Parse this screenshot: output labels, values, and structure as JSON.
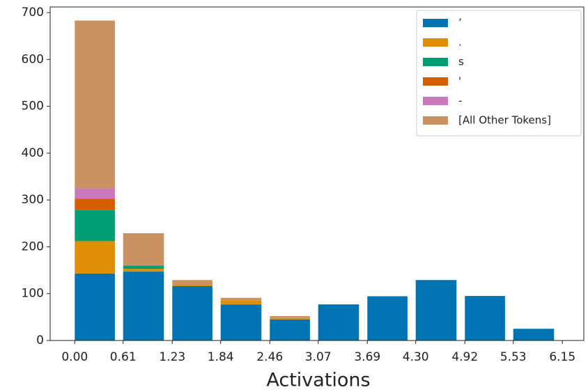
{
  "chart_data": {
    "type": "stacked-histogram",
    "xlabel": "Activations",
    "bins": [
      0,
      0.61,
      1.23,
      1.84,
      2.46,
      3.07,
      3.69,
      4.3,
      4.92,
      5.53,
      6.15
    ],
    "series": [
      {
        "name": "’",
        "color": "#0173b2",
        "values": [
          143,
          147,
          116,
          77,
          45,
          77,
          94,
          129,
          95,
          25
        ]
      },
      {
        "name": ".",
        "color": "#de8f05",
        "values": [
          69,
          6,
          3,
          8,
          3,
          0,
          0,
          0,
          0,
          0
        ]
      },
      {
        "name": "s",
        "color": "#029e73",
        "values": [
          67,
          7,
          0,
          0,
          0,
          0,
          0,
          0,
          0,
          0
        ]
      },
      {
        "name": "'",
        "color": "#d55e00",
        "values": [
          24,
          0,
          0,
          0,
          0,
          0,
          0,
          0,
          0,
          0
        ]
      },
      {
        "name": "-",
        "color": "#cc78bc",
        "values": [
          22,
          0,
          0,
          0,
          0,
          0,
          0,
          0,
          0,
          0
        ]
      },
      {
        "name": "[All Other Tokens]",
        "color": "#ca9161",
        "values": [
          358,
          69,
          10,
          6,
          4,
          0,
          1,
          0,
          0,
          0
        ]
      }
    ],
    "xlim": [
      -0.31,
      6.42
    ],
    "ylim": [
      0,
      712
    ],
    "xticks": [
      {
        "value": 0,
        "label": "0.00"
      },
      0.61,
      1.23,
      1.84,
      2.46,
      3.07,
      3.69,
      {
        "value": 4.3,
        "label": "4.30"
      },
      4.92,
      5.53,
      6.15
    ],
    "yticks": [
      0,
      100,
      200,
      300,
      400,
      500,
      600,
      700
    ],
    "legend": "upper-right"
  }
}
